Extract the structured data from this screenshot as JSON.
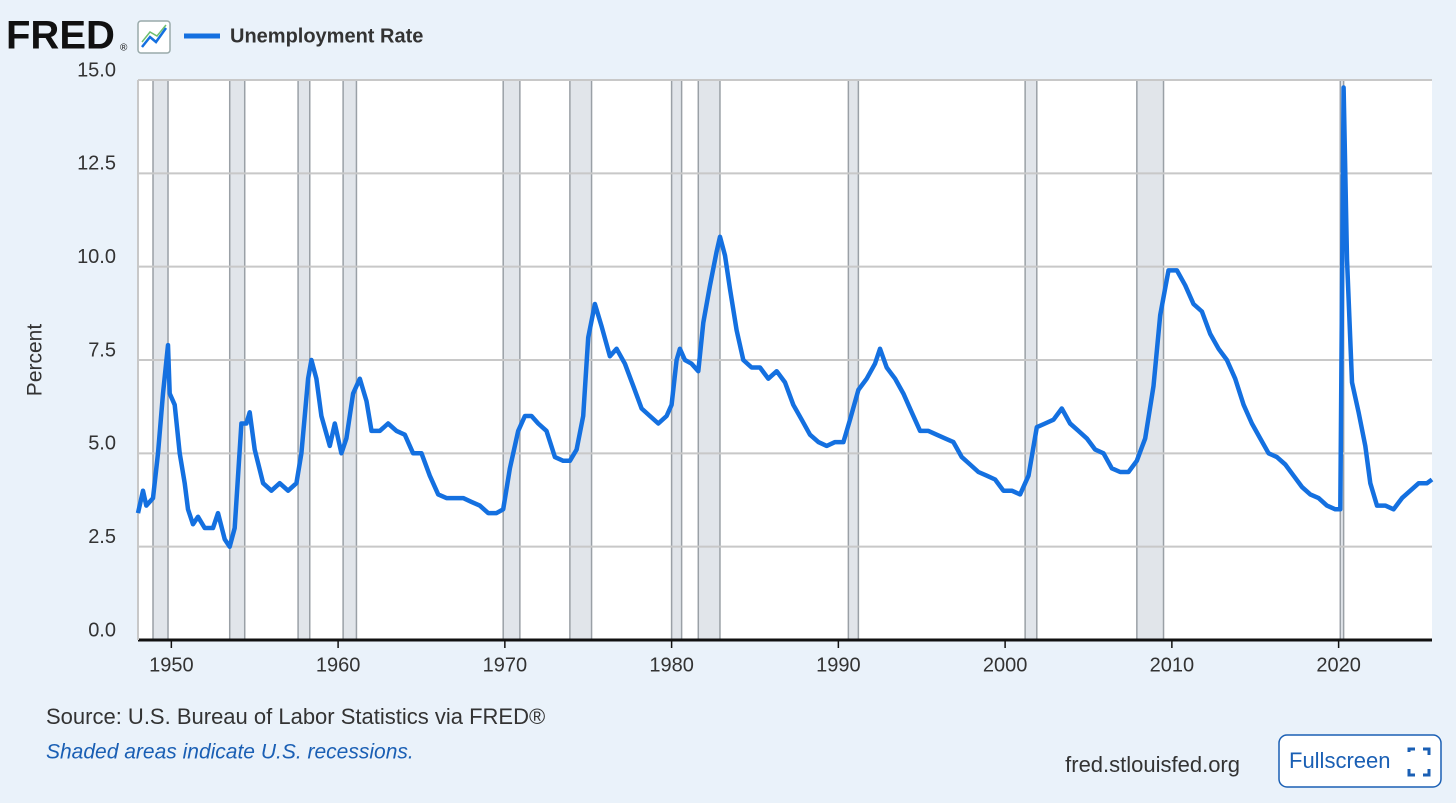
{
  "chart_data": {
    "type": "line",
    "logo": "FRED",
    "logo_mark": "®",
    "ylabel": "Percent",
    "source": "Source: U.S. Bureau of Labor Statistics via FRED®",
    "note": "Shaded areas indicate U.S. recessions.",
    "site": "fred.stlouisfed.org",
    "button": "Fullscreen",
    "xlim": [
      1948,
      2025.6
    ],
    "ylim": [
      0,
      15
    ],
    "xticks": [
      1950,
      1960,
      1970,
      1980,
      1990,
      2000,
      2010,
      2020
    ],
    "yticks": [
      {
        "value": 0,
        "label": "0.0"
      },
      2.5,
      {
        "value": 5,
        "label": "5.0"
      },
      7.5,
      {
        "value": 10,
        "label": "10.0"
      },
      12.5,
      {
        "value": 15,
        "label": "15.0"
      }
    ],
    "grid": true,
    "recession_color": "#e1e5ea",
    "recessions": [
      [
        1948.9,
        1949.8
      ],
      [
        1953.5,
        1954.4
      ],
      [
        1957.6,
        1958.3
      ],
      [
        1960.3,
        1961.1
      ],
      [
        1969.9,
        1970.9
      ],
      [
        1973.9,
        1975.2
      ],
      [
        1980.0,
        1980.6
      ],
      [
        1981.6,
        1982.9
      ],
      [
        1990.6,
        1991.2
      ],
      [
        2001.2,
        2001.9
      ],
      [
        2007.9,
        2009.5
      ],
      [
        2020.1,
        2020.3
      ]
    ],
    "x": [
      1948.0,
      1948.3,
      1948.5,
      1948.9,
      1949.2,
      1949.5,
      1949.8,
      1949.9,
      1950.2,
      1950.5,
      1950.8,
      1951.0,
      1951.3,
      1951.6,
      1952.0,
      1952.5,
      1952.8,
      1953.2,
      1953.5,
      1953.8,
      1954.2,
      1954.5,
      1954.7,
      1955.0,
      1955.5,
      1956.0,
      1956.5,
      1957.0,
      1957.5,
      1957.8,
      1958.2,
      1958.4,
      1958.7,
      1959.0,
      1959.5,
      1959.8,
      1960.2,
      1960.5,
      1960.9,
      1961.3,
      1961.7,
      1962.0,
      1962.5,
      1963.0,
      1963.5,
      1964.0,
      1964.5,
      1965.0,
      1965.5,
      1966.0,
      1966.5,
      1967.0,
      1967.5,
      1968.0,
      1968.5,
      1969.0,
      1969.5,
      1969.9,
      1970.3,
      1970.8,
      1971.2,
      1971.6,
      1972.0,
      1972.5,
      1973.0,
      1973.5,
      1973.9,
      1974.3,
      1974.7,
      1975.0,
      1975.4,
      1975.8,
      1976.3,
      1976.7,
      1977.2,
      1977.7,
      1978.2,
      1978.7,
      1979.2,
      1979.7,
      1980.0,
      1980.3,
      1980.5,
      1980.8,
      1981.2,
      1981.6,
      1981.9,
      1982.3,
      1982.7,
      1982.9,
      1983.2,
      1983.5,
      1983.9,
      1984.3,
      1984.8,
      1985.3,
      1985.8,
      1986.3,
      1986.8,
      1987.3,
      1987.8,
      1988.3,
      1988.8,
      1989.3,
      1989.8,
      1990.3,
      1990.7,
      1991.2,
      1991.7,
      1992.2,
      1992.5,
      1992.9,
      1993.4,
      1993.9,
      1994.4,
      1994.9,
      1995.4,
      1995.9,
      1996.4,
      1996.9,
      1997.4,
      1997.9,
      1998.4,
      1998.9,
      1999.4,
      1999.9,
      2000.4,
      2000.9,
      2001.4,
      2001.9,
      2002.4,
      2002.9,
      2003.4,
      2003.9,
      2004.4,
      2004.9,
      2005.4,
      2005.9,
      2006.4,
      2006.9,
      2007.4,
      2007.9,
      2008.4,
      2008.9,
      2009.3,
      2009.8,
      2010.3,
      2010.8,
      2011.3,
      2011.8,
      2012.3,
      2012.8,
      2013.3,
      2013.8,
      2014.3,
      2014.8,
      2015.3,
      2015.8,
      2016.3,
      2016.8,
      2017.3,
      2017.8,
      2018.3,
      2018.8,
      2019.3,
      2019.8,
      2020.1,
      2020.3,
      2020.5,
      2020.8,
      2021.2,
      2021.6,
      2021.9,
      2022.3,
      2022.8,
      2023.3,
      2023.8,
      2024.3,
      2024.8,
      2025.3,
      2025.6
    ],
    "series": [
      {
        "name": "Unemployment Rate",
        "color": "#1470e0",
        "values": [
          3.4,
          4.0,
          3.6,
          3.8,
          5.0,
          6.6,
          7.9,
          6.6,
          6.3,
          5.0,
          4.2,
          3.5,
          3.1,
          3.3,
          3.0,
          3.0,
          3.4,
          2.7,
          2.5,
          3.0,
          5.8,
          5.8,
          6.1,
          5.1,
          4.2,
          4.0,
          4.2,
          4.0,
          4.2,
          5.0,
          7.0,
          7.5,
          7.0,
          6.0,
          5.2,
          5.8,
          5.0,
          5.4,
          6.6,
          7.0,
          6.4,
          5.6,
          5.6,
          5.8,
          5.6,
          5.5,
          5.0,
          5.0,
          4.4,
          3.9,
          3.8,
          3.8,
          3.8,
          3.7,
          3.6,
          3.4,
          3.4,
          3.5,
          4.6,
          5.6,
          6.0,
          6.0,
          5.8,
          5.6,
          4.9,
          4.8,
          4.8,
          5.1,
          6.0,
          8.1,
          9.0,
          8.4,
          7.6,
          7.8,
          7.4,
          6.8,
          6.2,
          6.0,
          5.8,
          6.0,
          6.3,
          7.5,
          7.8,
          7.5,
          7.4,
          7.2,
          8.5,
          9.5,
          10.4,
          10.8,
          10.3,
          9.4,
          8.3,
          7.5,
          7.3,
          7.3,
          7.0,
          7.2,
          6.9,
          6.3,
          5.9,
          5.5,
          5.3,
          5.2,
          5.3,
          5.3,
          5.9,
          6.7,
          7.0,
          7.4,
          7.8,
          7.3,
          7.0,
          6.6,
          6.1,
          5.6,
          5.6,
          5.5,
          5.4,
          5.3,
          4.9,
          4.7,
          4.5,
          4.4,
          4.3,
          4.0,
          4.0,
          3.9,
          4.4,
          5.7,
          5.8,
          5.9,
          6.2,
          5.8,
          5.6,
          5.4,
          5.1,
          5.0,
          4.6,
          4.5,
          4.5,
          4.8,
          5.4,
          6.8,
          8.7,
          9.9,
          9.9,
          9.5,
          9.0,
          8.8,
          8.2,
          7.8,
          7.5,
          7.0,
          6.3,
          5.8,
          5.4,
          5.0,
          4.9,
          4.7,
          4.4,
          4.1,
          3.9,
          3.8,
          3.6,
          3.5,
          3.5,
          14.8,
          10.2,
          6.9,
          6.1,
          5.2,
          4.2,
          3.6,
          3.6,
          3.5,
          3.8,
          4.0,
          4.2,
          4.2,
          4.3
        ]
      }
    ]
  }
}
